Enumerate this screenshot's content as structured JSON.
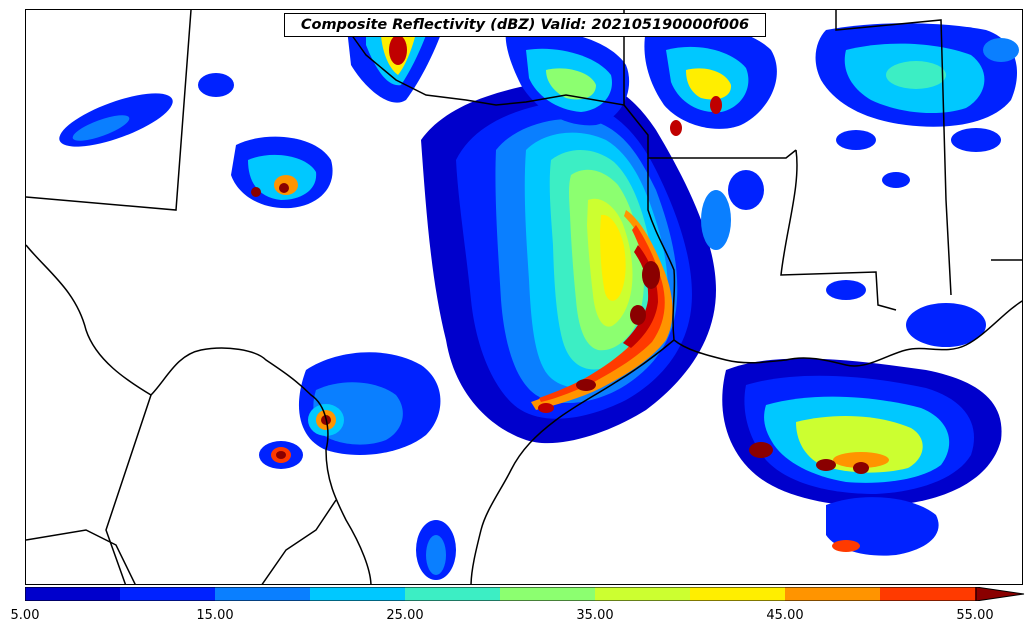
{
  "title": "Composite Reflectivity (dBZ) Valid: 202105190000f006",
  "colorbar": {
    "colors": [
      "#0000cc",
      "#0022ff",
      "#0a7fff",
      "#00c8ff",
      "#3ceec4",
      "#8cff70",
      "#ccff30",
      "#ffee00",
      "#ff9400",
      "#ff3a00",
      "#c00000",
      "#8a0000"
    ],
    "tick_labels": [
      "5.00",
      "15.00",
      "25.00",
      "35.00",
      "45.00",
      "55.00"
    ]
  },
  "reflectivity_palette": {
    "low": "#0000cc",
    "blue": "#0022ff",
    "mid_blue": "#0a7fff",
    "cyan": "#00c8ff",
    "aqua": "#3ceec4",
    "green": "#8cff70",
    "yellow_green": "#ccff30",
    "yellow": "#ffee00",
    "orange": "#ff9400",
    "red_orange": "#ff3a00",
    "red": "#c00000",
    "dark_red": "#8a0000"
  },
  "map_features": [
    "state-borders",
    "coastline",
    "international-border"
  ]
}
